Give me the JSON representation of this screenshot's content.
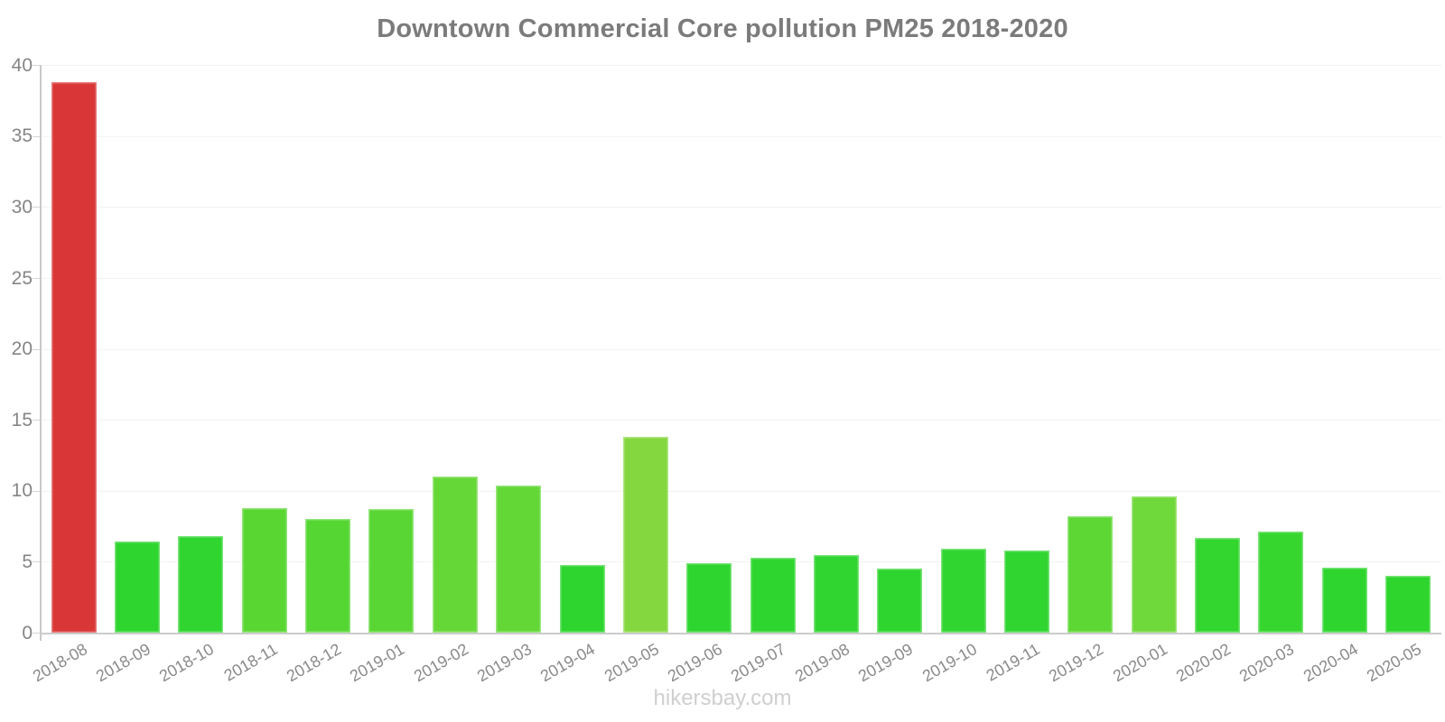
{
  "watermark": "hikersbay.com",
  "ui_colors": {
    "title_text": "#7b7b7b",
    "axis_line": "#cccccc",
    "gridline": "#f2f2f2",
    "y_tick_text": "#858585",
    "x_tick_text": "#8a8a8a",
    "watermark_text": "#cfcfcf",
    "background": "#ffffff",
    "highlight_bar": "#d93737",
    "normal_bar": "#2ed52e"
  },
  "chart_data": {
    "type": "bar",
    "title": "Downtown Commercial Core pollution PM25 2018-2020",
    "xlabel": "",
    "ylabel": "",
    "ylim": [
      0,
      40
    ],
    "yticks": [
      0,
      5,
      10,
      15,
      20,
      25,
      30,
      35,
      40
    ],
    "grid": "horizontal",
    "legend_position": "none",
    "categories": [
      "2018-08",
      "2018-09",
      "2018-10",
      "2018-11",
      "2018-12",
      "2019-01",
      "2019-02",
      "2019-03",
      "2019-04",
      "2019-05",
      "2019-06",
      "2019-07",
      "2019-08",
      "2019-09",
      "2019-10",
      "2019-11",
      "2019-12",
      "2020-01",
      "2020-02",
      "2020-03",
      "2020-04",
      "2020-05"
    ],
    "values": [
      38.8,
      6.4,
      6.8,
      8.8,
      8.0,
      8.7,
      11.0,
      10.4,
      4.8,
      13.8,
      4.9,
      5.3,
      5.5,
      4.5,
      5.9,
      5.8,
      8.2,
      9.6,
      6.7,
      7.1,
      4.6,
      4.0
    ],
    "bar_colors": [
      "#d93737",
      "#2ed52e",
      "#30d530",
      "#5ad633",
      "#55d632",
      "#59d633",
      "#65d737",
      "#62d736",
      "#2ed52e",
      "#84d73e",
      "#2fd52f",
      "#2fd52f",
      "#30d530",
      "#2ed52e",
      "#31d530",
      "#30d530",
      "#5cd734",
      "#6fd83a",
      "#33d52f",
      "#37d62f",
      "#2ed52e",
      "#2dd52d"
    ]
  }
}
